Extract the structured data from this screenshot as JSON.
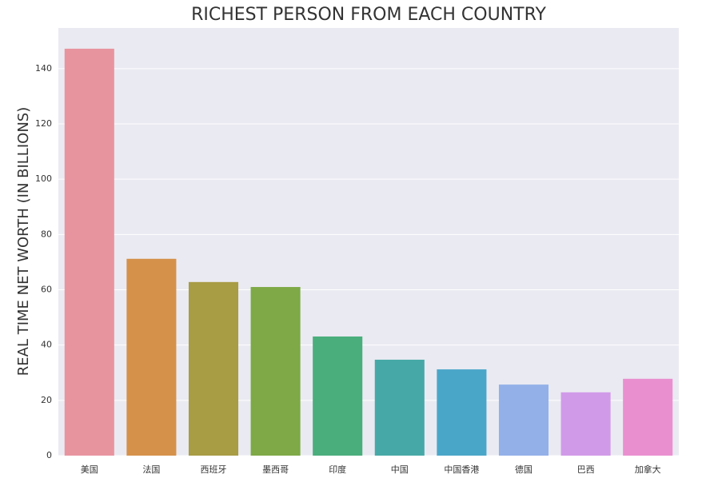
{
  "chart_data": {
    "type": "bar",
    "title": "RICHEST PERSON FROM EACH COUNTRY",
    "y_label": "REAL TIME NET WORTH (IN BILLIONS)",
    "categories": [
      "美国",
      "法国",
      "西班牙",
      "墨西哥",
      "印度",
      "中国",
      "中国香港",
      "德国",
      "巴西",
      "加拿大"
    ],
    "values": [
      147.2,
      71.2,
      62.8,
      61.0,
      43.1,
      34.7,
      31.2,
      25.7,
      22.9,
      27.8
    ],
    "colors": [
      "#e8949f",
      "#d5914a",
      "#a89c44",
      "#7ea946",
      "#4aae7c",
      "#47a9a7",
      "#4aa6c9",
      "#93b0e8",
      "#d19ae8",
      "#e98fcf"
    ],
    "ylim": [
      0,
      154.7
    ],
    "yticks": [
      0,
      20,
      40,
      60,
      80,
      100,
      120,
      140
    ],
    "grid": true
  }
}
